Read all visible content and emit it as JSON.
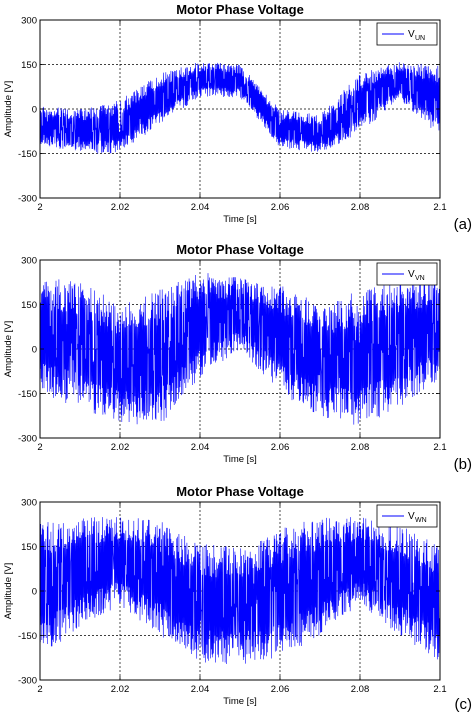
{
  "colors": {
    "signal": "#0000ff",
    "grid": "#000000",
    "frame": "#000000"
  },
  "chart_data": [
    {
      "type": "line",
      "panel_label": "(a)",
      "title": "Motor Phase Voltage",
      "xlabel": "Time [s]",
      "ylabel": "Amplitude [V]",
      "xlim": [
        2,
        2.1
      ],
      "ylim": [
        -300,
        300
      ],
      "xticks": [
        "2",
        "2.02",
        "2.04",
        "2.06",
        "2.08",
        "2.1"
      ],
      "yticks": [
        "300",
        "150",
        "0",
        "-150",
        "-300"
      ],
      "grid": true,
      "legend": {
        "position": "top-right",
        "label_main": "V",
        "label_sub": "UN"
      },
      "series": [
        {
          "name": "V_UN",
          "waveform": "pwm-phase-voltage",
          "fundamental_period_s": 0.06,
          "envelope": {
            "x": [
              2.0,
              2.01,
              2.02,
              2.03,
              2.04,
              2.05,
              2.06,
              2.07,
              2.08,
              2.09,
              2.1
            ],
            "min": [
              -120,
              -150,
              -150,
              -50,
              40,
              40,
              -130,
              -150,
              -80,
              30,
              -100
            ],
            "max": [
              10,
              0,
              30,
              120,
              160,
              150,
              0,
              -20,
              120,
              160,
              150
            ]
          }
        }
      ]
    },
    {
      "type": "line",
      "panel_label": "(b)",
      "title": "Motor Phase Voltage",
      "xlabel": "Time [s]",
      "ylabel": "Amplitude [V]",
      "xlim": [
        2,
        2.1
      ],
      "ylim": [
        -300,
        300
      ],
      "xticks": [
        "2",
        "2.02",
        "2.04",
        "2.06",
        "2.08",
        "2.1"
      ],
      "yticks": [
        "300",
        "150",
        "0",
        "-150",
        "-300"
      ],
      "grid": true,
      "legend": {
        "position": "top-right",
        "label_main": "V",
        "label_sub": "VN"
      },
      "series": [
        {
          "name": "V_VN",
          "waveform": "pwm-phase-voltage",
          "fundamental_period_s": 0.06,
          "envelope": {
            "x": [
              2.0,
              2.01,
              2.02,
              2.03,
              2.04,
              2.05,
              2.06,
              2.07,
              2.08,
              2.09,
              2.1
            ],
            "min": [
              -150,
              -200,
              -250,
              -260,
              -100,
              0,
              -150,
              -230,
              -260,
              -200,
              -100
            ],
            "max": [
              240,
              230,
              150,
              200,
              260,
              240,
              220,
              150,
              200,
              250,
              240
            ]
          }
        }
      ]
    },
    {
      "type": "line",
      "panel_label": "(c)",
      "title": "Motor Phase Voltage",
      "xlabel": "Time [s]",
      "ylabel": "Amplitude [V]",
      "xlim": [
        2,
        2.1
      ],
      "ylim": [
        -300,
        300
      ],
      "xticks": [
        "2",
        "2.02",
        "2.04",
        "2.06",
        "2.08",
        "2.1"
      ],
      "yticks": [
        "300",
        "150",
        "0",
        "-150",
        "-300"
      ],
      "grid": true,
      "legend": {
        "position": "top-right",
        "label_main": "V",
        "label_sub": "WN"
      },
      "series": [
        {
          "name": "V_WN",
          "waveform": "pwm-phase-voltage",
          "fundamental_period_s": 0.06,
          "envelope": {
            "x": [
              2.0,
              2.01,
              2.02,
              2.03,
              2.04,
              2.05,
              2.06,
              2.07,
              2.08,
              2.09,
              2.1
            ],
            "min": [
              -230,
              -120,
              -50,
              -150,
              -240,
              -250,
              -230,
              -150,
              -50,
              -150,
              -240
            ],
            "max": [
              240,
              250,
              250,
              240,
              160,
              150,
              210,
              250,
              250,
              220,
              160
            ]
          }
        }
      ]
    }
  ]
}
